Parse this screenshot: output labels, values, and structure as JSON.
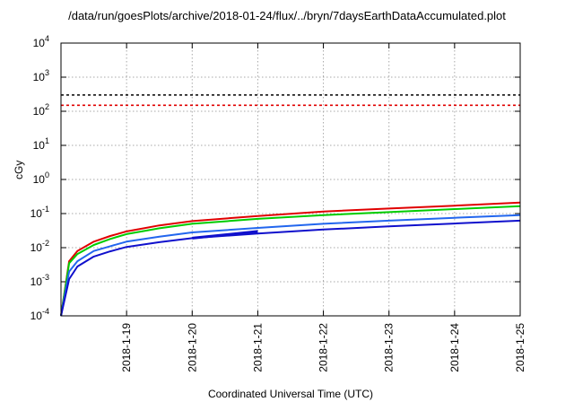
{
  "chart_data": {
    "type": "line",
    "title": "/data/run/goesPlots/archive/2018-01-24/flux/../bryn/7daysEarthDataAccumulated.plot",
    "xlabel": "Coordinated Universal Time (UTC)",
    "ylabel": "cGy",
    "xlim": [
      "2018-01-18T00:00",
      "2018-01-25T00:00"
    ],
    "ylim": [
      0.0001,
      10000
    ],
    "yscale": "log",
    "grid": true,
    "x_tick_labels": [
      "2018-1-19",
      "2018-1-20",
      "2018-1-21",
      "2018-1-22",
      "2018-1-23",
      "2018-1-24",
      "2018-1-25"
    ],
    "y_tick_labels": [
      {
        "base": "10",
        "exp": "-4"
      },
      {
        "base": "10",
        "exp": "-3"
      },
      {
        "base": "10",
        "exp": "-2"
      },
      {
        "base": "10",
        "exp": "-1"
      },
      {
        "base": "10",
        "exp": "0"
      },
      {
        "base": "10",
        "exp": "1"
      },
      {
        "base": "10",
        "exp": "2"
      },
      {
        "base": "10",
        "exp": "3"
      },
      {
        "base": "10",
        "exp": "4"
      }
    ],
    "thresholds": [
      {
        "y": 300,
        "color": "#000000",
        "style": "dashed"
      },
      {
        "y": 150,
        "color": "#e00000",
        "style": "dashed"
      }
    ],
    "series": [
      {
        "color": "#e00000",
        "x": [
          "2018-01-18T00:00",
          "2018-01-18T03:00",
          "2018-01-18T06:00",
          "2018-01-18T12:00",
          "2018-01-18T18:00",
          "2018-01-19T00:00",
          "2018-01-19T12:00",
          "2018-01-20T00:00",
          "2018-01-21T00:00",
          "2018-01-22T00:00",
          "2018-01-23T00:00",
          "2018-01-24T00:00",
          "2018-01-25T00:00"
        ],
        "values": [
          0.0001,
          0.004,
          0.008,
          0.015,
          0.022,
          0.03,
          0.045,
          0.06,
          0.085,
          0.115,
          0.14,
          0.17,
          0.21
        ]
      },
      {
        "color": "#00cc00",
        "x": [
          "2018-01-18T00:00",
          "2018-01-18T03:00",
          "2018-01-18T06:00",
          "2018-01-18T12:00",
          "2018-01-18T18:00",
          "2018-01-19T00:00",
          "2018-01-19T12:00",
          "2018-01-20T00:00",
          "2018-01-21T00:00",
          "2018-01-22T00:00",
          "2018-01-23T00:00",
          "2018-01-24T00:00",
          "2018-01-25T00:00"
        ],
        "values": [
          0.0001,
          0.0035,
          0.0065,
          0.012,
          0.018,
          0.025,
          0.037,
          0.05,
          0.07,
          0.09,
          0.11,
          0.135,
          0.165
        ]
      },
      {
        "color": "#2266ee",
        "x": [
          "2018-01-18T00:00",
          "2018-01-18T03:00",
          "2018-01-18T06:00",
          "2018-01-18T12:00",
          "2018-01-18T18:00",
          "2018-01-19T00:00",
          "2018-01-19T12:00",
          "2018-01-20T00:00",
          "2018-01-21T00:00",
          "2018-01-22T00:00",
          "2018-01-23T00:00",
          "2018-01-24T00:00",
          "2018-01-25T00:00"
        ],
        "values": [
          0.0001,
          0.002,
          0.004,
          0.008,
          0.011,
          0.015,
          0.021,
          0.028,
          0.038,
          0.05,
          0.062,
          0.075,
          0.09
        ]
      },
      {
        "color": "#1010cc",
        "x": [
          "2018-01-18T00:00",
          "2018-01-18T03:00",
          "2018-01-18T06:00",
          "2018-01-18T12:00",
          "2018-01-18T18:00",
          "2018-01-19T00:00",
          "2018-01-19T12:00",
          "2018-01-20T00:00",
          "2018-01-21T00:00",
          "2018-01-22T00:00",
          "2018-01-23T00:00",
          "2018-01-24T00:00",
          "2018-01-25T00:00"
        ],
        "values": [
          0.0001,
          0.0012,
          0.0028,
          0.0055,
          0.0078,
          0.0105,
          0.0145,
          0.019,
          0.026,
          0.034,
          0.042,
          0.051,
          0.062
        ]
      },
      {
        "color": "#1010cc",
        "x": [
          "2018-01-20T00:00",
          "2018-01-21T00:00"
        ],
        "values": [
          0.019,
          0.03
        ]
      }
    ]
  }
}
